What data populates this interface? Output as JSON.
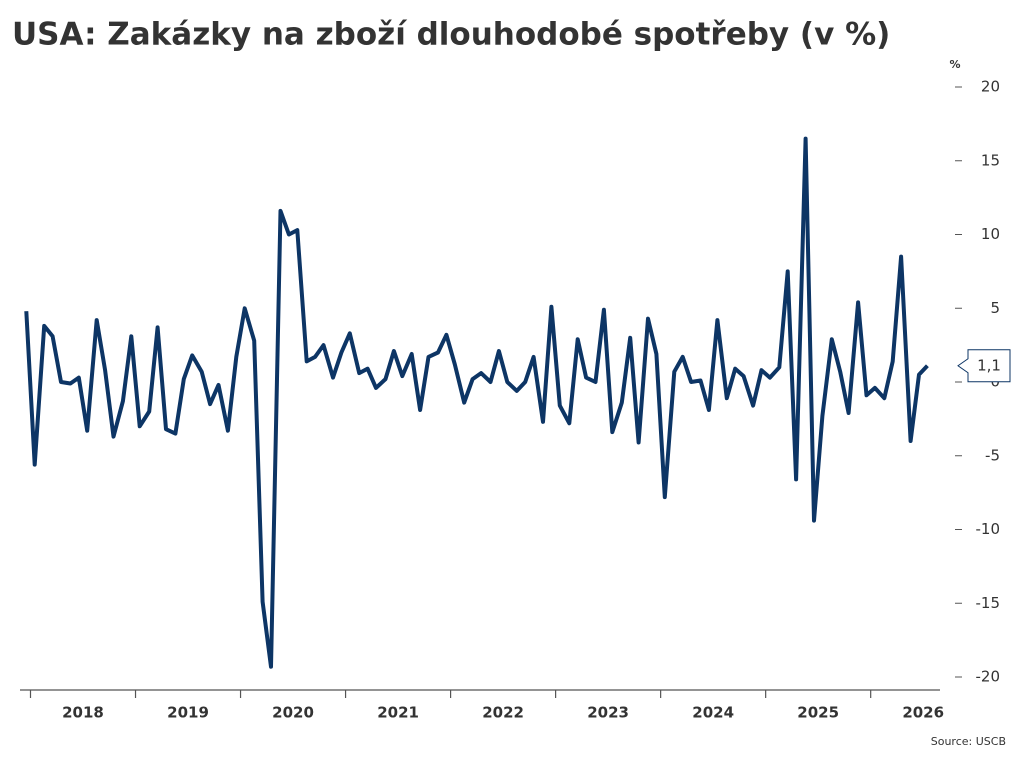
{
  "chart_data": {
    "type": "line",
    "title": "USA: Zakázky na zboží dlouhodobé spotřeby (v %)",
    "y_unit": "%",
    "source": "Source: USCB",
    "color": "#0d3565",
    "x": [
      2017.96,
      2018.04,
      2018.13,
      2018.21,
      2018.29,
      2018.38,
      2018.46,
      2018.54,
      2018.63,
      2018.71,
      2018.79,
      2018.88,
      2018.96,
      2019.04,
      2019.13,
      2019.21,
      2019.29,
      2019.38,
      2019.46,
      2019.54,
      2019.63,
      2019.71,
      2019.79,
      2019.88,
      2019.96,
      2020.04,
      2020.13,
      2020.21,
      2020.29,
      2020.38,
      2020.46,
      2020.54,
      2020.63,
      2020.71,
      2020.79,
      2020.88,
      2020.96,
      2021.04,
      2021.13,
      2021.21,
      2021.29,
      2021.38,
      2021.46,
      2021.54,
      2021.63,
      2021.71,
      2021.79,
      2021.88,
      2021.96,
      2022.04,
      2022.13,
      2022.21,
      2022.29,
      2022.38,
      2022.46,
      2022.54,
      2022.63,
      2022.71,
      2022.79,
      2022.88,
      2022.96,
      2023.04,
      2023.13,
      2023.21,
      2023.29,
      2023.38,
      2023.46,
      2023.54,
      2023.63,
      2023.71,
      2023.79,
      2023.88,
      2023.96,
      2024.04,
      2024.13,
      2024.21,
      2024.29,
      2024.38,
      2024.46,
      2024.54,
      2024.63,
      2024.71,
      2024.79,
      2024.88,
      2024.96,
      2025.04,
      2025.13,
      2025.21,
      2025.29,
      2025.38,
      2025.46,
      2025.54,
      2025.63,
      2025.71,
      2025.79,
      2025.88,
      2025.96,
      2026.04,
      2026.13,
      2026.21,
      2026.29,
      2026.38,
      2026.46,
      2026.54
    ],
    "values": [
      4.8,
      -5.6,
      3.8,
      3.1,
      0,
      -0.1,
      0.3,
      -3.3,
      4.2,
      0.8,
      -3.7,
      -1.3,
      3.1,
      -3.0,
      -2.0,
      3.7,
      -3.2,
      -3.5,
      0.2,
      1.8,
      0.7,
      -1.5,
      -0.2,
      -3.3,
      1.7,
      5.0,
      2.8,
      -14.9,
      -19.3,
      11.6,
      10.0,
      10.3,
      1.4,
      1.7,
      2.5,
      0.3,
      2.0,
      3.3,
      0.6,
      0.9,
      -0.4,
      0.2,
      2.1,
      0.4,
      1.9,
      -1.9,
      1.7,
      2.0,
      3.2,
      1.2,
      -1.4,
      0.2,
      0.6,
      0,
      2.1,
      0,
      -0.6,
      0,
      1.7,
      -2.7,
      5.1,
      -1.6,
      -2.8,
      2.9,
      0.3,
      0,
      4.9,
      -3.4,
      -1.4,
      3.0,
      -4.1,
      4.3,
      1.9,
      -7.8,
      0.7,
      1.7,
      0,
      0.1,
      -1.9,
      4.2,
      -1.1,
      0.9,
      0.4,
      -1.6,
      0.8,
      0.3,
      1.0,
      7.5,
      -6.6,
      16.5,
      -9.4,
      -2.3,
      2.9,
      0.7,
      -2.1,
      5.4,
      -0.9,
      -0.4,
      -1.1,
      1.4,
      8.5,
      -4.0,
      0.5,
      1.1
    ],
    "value_labels": [
      null,
      null,
      null,
      null,
      null,
      null,
      null,
      null,
      null,
      null,
      null,
      null,
      null,
      null,
      null,
      null,
      null,
      null,
      null,
      null,
      null,
      null,
      null,
      null,
      null,
      null,
      null,
      null,
      null,
      null,
      null,
      null,
      null,
      null,
      null,
      null,
      null,
      null,
      null,
      null,
      null,
      null,
      null,
      null,
      null,
      null,
      null,
      null,
      null,
      null,
      null,
      null,
      null,
      null,
      null,
      null,
      null,
      null,
      null,
      null,
      null,
      null,
      null,
      null,
      null,
      null,
      null,
      null,
      null,
      null,
      null,
      null,
      null,
      null,
      null,
      null,
      null,
      null,
      null,
      null,
      null,
      null,
      null,
      null,
      null,
      null,
      null,
      null,
      null,
      null,
      null,
      null,
      null,
      null,
      null,
      null,
      null,
      null,
      null,
      null,
      null,
      null,
      null,
      "1,1"
    ],
    "xlim": [
      2017.9,
      2026.66
    ],
    "xticks": [
      {
        "value": 2018,
        "label": "2018"
      },
      {
        "value": 2019,
        "label": "2019"
      },
      {
        "value": 2020,
        "label": "2020"
      },
      {
        "value": 2021,
        "label": "2021"
      },
      {
        "value": 2022,
        "label": "2022"
      },
      {
        "value": 2023,
        "label": "2023"
      },
      {
        "value": 2024,
        "label": "2024"
      },
      {
        "value": 2025,
        "label": "2025"
      },
      {
        "value": 2026,
        "label": "2026"
      }
    ],
    "ylim": [
      -20,
      20
    ],
    "yticks": [
      20,
      15,
      10,
      5,
      0,
      -5,
      -10,
      -15,
      -20
    ]
  }
}
